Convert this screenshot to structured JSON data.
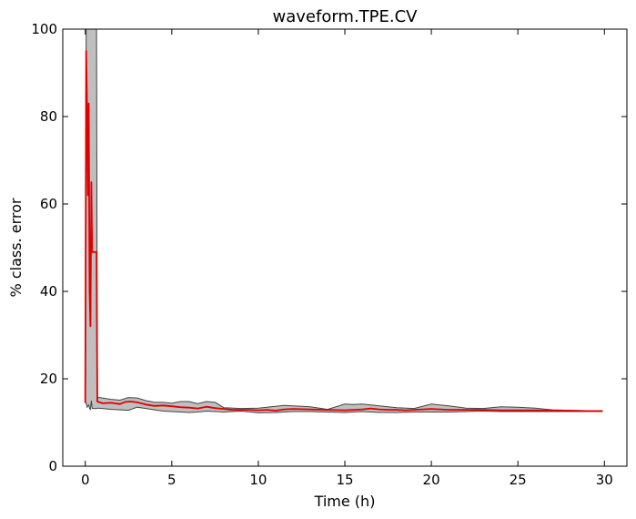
{
  "chart_data": {
    "type": "line",
    "title": "waveform.TPE.CV",
    "xlabel": "Time (h)",
    "ylabel": "% class. error",
    "xlim": [
      -1.3,
      31.3
    ],
    "ylim": [
      0,
      100
    ],
    "x_ticks": [
      {
        "value": 0,
        "label": "0"
      },
      {
        "value": 5,
        "label": "5"
      },
      {
        "value": 10,
        "label": "10"
      },
      {
        "value": 15,
        "label": "15"
      },
      {
        "value": 20,
        "label": "20"
      },
      {
        "value": 25,
        "label": "25"
      },
      {
        "value": 30,
        "label": "30"
      }
    ],
    "y_ticks": [
      {
        "value": 0,
        "label": "0"
      },
      {
        "value": 20,
        "label": "20"
      },
      {
        "value": 40,
        "label": "40"
      },
      {
        "value": 60,
        "label": "60"
      },
      {
        "value": 80,
        "label": "80"
      },
      {
        "value": 100,
        "label": "100"
      }
    ],
    "grid": false,
    "legend": "none",
    "colors": {
      "line": "#e00000",
      "band_fill": "#bfbfbf",
      "band_edge": "#444444"
    },
    "series": [
      {
        "role": "mean",
        "x": [
          0.0,
          0.05,
          0.1,
          0.15,
          0.2,
          0.25,
          0.3,
          0.35,
          0.4,
          0.45,
          0.5,
          0.6,
          0.65,
          0.7,
          1.0,
          1.5,
          2.0,
          2.3,
          2.6,
          3.0,
          3.5,
          4.0,
          4.5,
          5.0,
          5.5,
          6.0,
          6.5,
          7.0,
          7.5,
          8.0,
          8.5,
          9.0,
          9.5,
          10.0,
          10.5,
          11.0,
          11.5,
          12.0,
          13.0,
          14.0,
          15.0,
          15.5,
          16.0,
          16.5,
          17.0,
          17.5,
          18.0,
          18.5,
          19.0,
          19.5,
          20.0,
          20.5,
          21.0,
          22.0,
          23.0,
          24.0,
          25.0,
          26.0,
          27.0,
          28.0,
          29.0,
          29.9
        ],
        "y": [
          14.5,
          95,
          83,
          62,
          83,
          40,
          32,
          65,
          49,
          49,
          49,
          49,
          49,
          14.8,
          14.4,
          14.5,
          14.2,
          14.7,
          14.8,
          14.6,
          14.1,
          13.8,
          13.9,
          13.7,
          13.5,
          13.4,
          13.2,
          13.6,
          13.3,
          13.1,
          12.9,
          12.9,
          12.9,
          12.8,
          12.9,
          12.7,
          13.0,
          13.1,
          13.0,
          12.9,
          12.8,
          12.9,
          13.0,
          13.2,
          13.0,
          12.9,
          12.9,
          12.8,
          12.9,
          13.0,
          13.1,
          13.0,
          12.9,
          12.9,
          12.9,
          12.8,
          12.8,
          12.8,
          12.7,
          12.7,
          12.6,
          12.6
        ]
      },
      {
        "role": "upper_bound",
        "x": [
          0.0,
          0.05,
          0.3,
          0.35,
          0.4,
          0.6,
          0.65,
          0.7,
          1.0,
          1.5,
          2.0,
          2.5,
          3.0,
          3.5,
          4.0,
          4.5,
          5.0,
          5.5,
          6.0,
          6.5,
          7.0,
          7.5,
          8.0,
          9.0,
          10.0,
          11.0,
          11.5,
          12.0,
          13.0,
          14.0,
          15.0,
          15.5,
          16.0,
          16.5,
          17.0,
          18.0,
          19.0,
          20.0,
          21.0,
          22.0,
          23.0,
          24.0,
          25.0,
          26.0,
          27.0,
          28.0,
          29.0,
          29.9
        ],
        "y": [
          15,
          100,
          100,
          100,
          100,
          100,
          100,
          15.8,
          15.6,
          15.3,
          15.1,
          15.7,
          15.6,
          15.0,
          14.6,
          14.6,
          14.4,
          14.8,
          14.8,
          14.3,
          14.8,
          14.6,
          13.4,
          13.2,
          13.3,
          13.7,
          13.9,
          13.8,
          13.6,
          13.0,
          14.2,
          14.1,
          14.2,
          14.0,
          13.8,
          13.4,
          13.2,
          14.2,
          13.8,
          13.3,
          13.2,
          13.6,
          13.5,
          13.3,
          12.9,
          12.8,
          12.7,
          12.7
        ]
      },
      {
        "role": "lower_bound",
        "x": [
          0.0,
          0.05,
          0.1,
          0.2,
          0.25,
          0.3,
          0.35,
          0.4,
          0.5,
          0.6,
          0.65,
          0.7,
          1.0,
          1.5,
          2.0,
          2.5,
          3.0,
          3.5,
          4.0,
          4.5,
          5.0,
          5.5,
          6.0,
          6.5,
          7.0,
          7.5,
          8.0,
          9.0,
          10.0,
          11.0,
          12.0,
          13.0,
          14.0,
          15.0,
          16.0,
          17.0,
          18.0,
          19.0,
          20.0,
          21.0,
          22.0,
          23.0,
          24.0,
          25.0,
          26.0,
          27.0,
          28.0,
          29.0,
          29.9
        ],
        "y": [
          14.5,
          14.5,
          13.5,
          14.0,
          13.2,
          13.0,
          15.0,
          13.2,
          13.2,
          13.2,
          13.2,
          13.3,
          13.2,
          13.0,
          12.9,
          12.8,
          13.5,
          13.2,
          12.9,
          12.6,
          12.5,
          12.4,
          12.3,
          12.4,
          12.6,
          12.5,
          12.4,
          12.6,
          12.2,
          12.3,
          12.5,
          12.5,
          12.4,
          12.3,
          12.5,
          12.3,
          12.3,
          12.4,
          12.4,
          12.4,
          12.5,
          12.6,
          12.5,
          12.5,
          12.5,
          12.5,
          12.5,
          12.5,
          12.5
        ]
      }
    ]
  }
}
